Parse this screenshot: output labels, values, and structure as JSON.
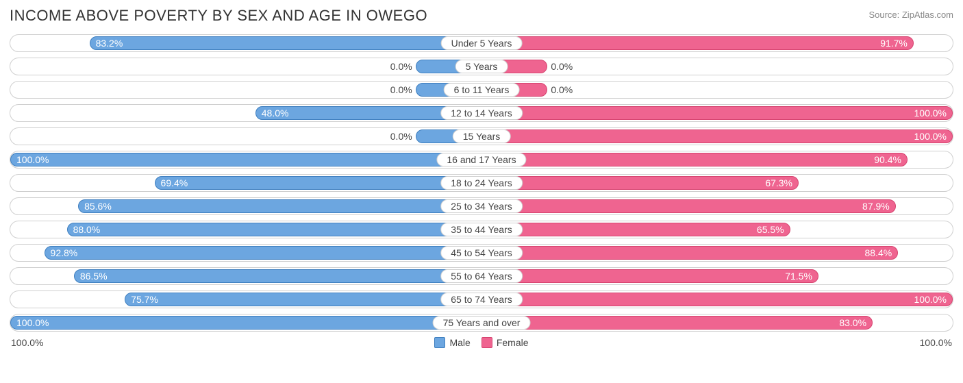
{
  "chart": {
    "type": "bar-diverging",
    "title": "INCOME ABOVE POVERTY BY SEX AND AGE IN OWEGO",
    "source": "Source: ZipAtlas.com",
    "max_value": 100.0,
    "axis_left_label": "100.0%",
    "axis_right_label": "100.0%",
    "colors": {
      "male_fill": "#6ca6e0",
      "male_border": "#3f7fbf",
      "female_fill": "#ef6490",
      "female_border": "#d6436f",
      "row_border": "#cfcfcf",
      "text": "#444444",
      "label_text_inside": "#ffffff",
      "background": "#ffffff"
    },
    "min_bar_pct": 14,
    "label_inside_threshold": 30,
    "legend": [
      {
        "label": "Male",
        "fill": "#6ca6e0",
        "border": "#3f7fbf"
      },
      {
        "label": "Female",
        "fill": "#ef6490",
        "border": "#d6436f"
      }
    ],
    "rows": [
      {
        "category": "Under 5 Years",
        "male": 83.2,
        "female": 91.7
      },
      {
        "category": "5 Years",
        "male": 0.0,
        "female": 0.0
      },
      {
        "category": "6 to 11 Years",
        "male": 0.0,
        "female": 0.0
      },
      {
        "category": "12 to 14 Years",
        "male": 48.0,
        "female": 100.0
      },
      {
        "category": "15 Years",
        "male": 0.0,
        "female": 100.0
      },
      {
        "category": "16 and 17 Years",
        "male": 100.0,
        "female": 90.4
      },
      {
        "category": "18 to 24 Years",
        "male": 69.4,
        "female": 67.3
      },
      {
        "category": "25 to 34 Years",
        "male": 85.6,
        "female": 87.9
      },
      {
        "category": "35 to 44 Years",
        "male": 88.0,
        "female": 65.5
      },
      {
        "category": "45 to 54 Years",
        "male": 92.8,
        "female": 88.4
      },
      {
        "category": "55 to 64 Years",
        "male": 86.5,
        "female": 71.5
      },
      {
        "category": "65 to 74 Years",
        "male": 75.7,
        "female": 100.0
      },
      {
        "category": "75 Years and over",
        "male": 100.0,
        "female": 83.0
      }
    ]
  }
}
